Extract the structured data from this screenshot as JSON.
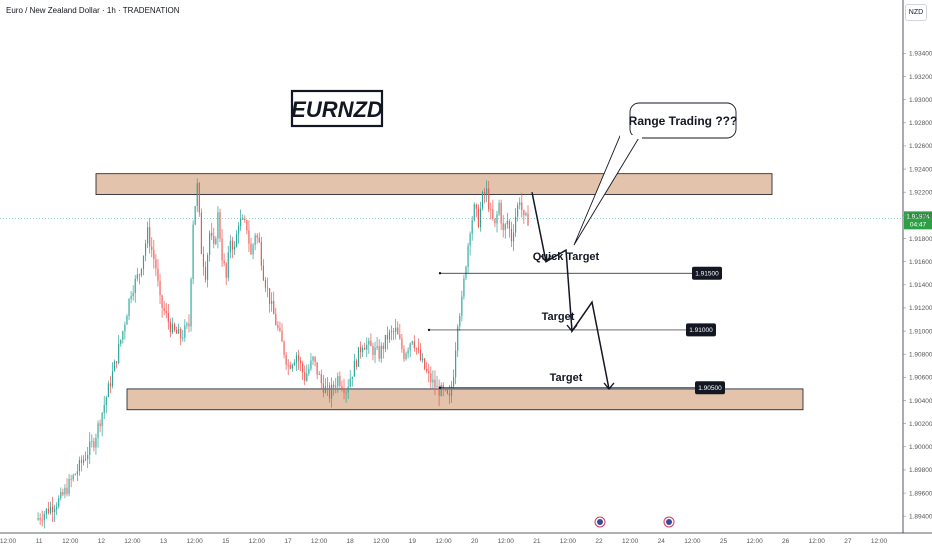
{
  "header": {
    "title": "Euro / New Zealand Dollar · 1h · TRADENATION",
    "currency": "NZD"
  },
  "colors": {
    "up": "#26a69a",
    "down": "#ef5350",
    "zone_fill": "#deb99c",
    "label_bg": "#131722",
    "current_price_bg": "#2e9e47"
  },
  "chart_data": {
    "type": "candlestick",
    "symbol": "EURNZD",
    "ylim": [
      1.8935,
      1.9355
    ],
    "y_ticks": [
      "1.93400",
      "1.93200",
      "1.93000",
      "1.92800",
      "1.92600",
      "1.92400",
      "1.92200",
      "1.92000",
      "1.91800",
      "1.91600",
      "1.91400",
      "1.91200",
      "1.91000",
      "1.90800",
      "1.90600",
      "1.90400",
      "1.90200",
      "1.90000",
      "1.89800",
      "1.89600",
      "1.89400"
    ],
    "x_ticks": [
      "12:00",
      "11",
      "12:00",
      "12",
      "12:00",
      "13",
      "12:00",
      "15",
      "12:00",
      "17",
      "12:00",
      "18",
      "12:00",
      "19",
      "12:00",
      "20",
      "12:00",
      "21",
      "12:00",
      "22",
      "12:00",
      "24",
      "12:00",
      "25",
      "12:00",
      "26",
      "12:00",
      "27",
      "12:00"
    ],
    "close_path": [
      [
        0,
        1.8937
      ],
      [
        6,
        1.8955
      ],
      [
        10,
        1.898
      ],
      [
        14,
        1.9005
      ],
      [
        16,
        1.903
      ],
      [
        19,
        1.907
      ],
      [
        21,
        1.91
      ],
      [
        23,
        1.9135
      ],
      [
        25,
        1.915
      ],
      [
        27,
        1.9185
      ],
      [
        29,
        1.9155
      ],
      [
        30,
        1.9125
      ],
      [
        33,
        1.91
      ],
      [
        35,
        1.9095
      ],
      [
        37,
        1.9105
      ],
      [
        38,
        1.9195
      ],
      [
        39,
        1.9225
      ],
      [
        40,
        1.917
      ],
      [
        41,
        1.915
      ],
      [
        42,
        1.9185
      ],
      [
        43,
        1.917
      ],
      [
        44,
        1.92
      ],
      [
        45,
        1.9165
      ],
      [
        46,
        1.9145
      ],
      [
        47,
        1.918
      ],
      [
        48,
        1.917
      ],
      [
        49,
        1.9195
      ],
      [
        51,
        1.919
      ],
      [
        52,
        1.9165
      ],
      [
        53,
        1.9185
      ],
      [
        54,
        1.9175
      ],
      [
        55,
        1.915
      ],
      [
        57,
        1.912
      ],
      [
        59,
        1.9095
      ],
      [
        61,
        1.907
      ],
      [
        63,
        1.908
      ],
      [
        65,
        1.906
      ],
      [
        67,
        1.9075
      ],
      [
        69,
        1.9055
      ],
      [
        71,
        1.9045
      ],
      [
        73,
        1.906
      ],
      [
        75,
        1.905
      ],
      [
        77,
        1.907
      ],
      [
        79,
        1.909
      ],
      [
        81,
        1.9085
      ],
      [
        83,
        1.908
      ],
      [
        85,
        1.9095
      ],
      [
        87,
        1.91
      ],
      [
        89,
        1.908
      ],
      [
        91,
        1.9095
      ],
      [
        93,
        1.9075
      ],
      [
        95,
        1.906
      ],
      [
        97,
        1.905
      ],
      [
        99,
        1.9045
      ],
      [
        100,
        1.904
      ],
      [
        101,
        1.9065
      ],
      [
        102,
        1.911
      ],
      [
        103,
        1.9125
      ],
      [
        104,
        1.916
      ],
      [
        105,
        1.919
      ],
      [
        106,
        1.9205
      ],
      [
        107,
        1.9195
      ],
      [
        108,
        1.9215
      ],
      [
        109,
        1.922
      ],
      [
        110,
        1.92
      ],
      [
        111,
        1.919
      ],
      [
        112,
        1.921
      ],
      [
        113,
        1.9185
      ],
      [
        114,
        1.9195
      ],
      [
        115,
        1.918
      ],
      [
        116,
        1.92
      ],
      [
        117,
        1.9215
      ],
      [
        118,
        1.9195
      ],
      [
        119,
        1.9197
      ]
    ],
    "current_price": {
      "value": "1.91974",
      "countdown": "04:47",
      "y": 1.91974
    },
    "zones": [
      {
        "name": "resistance",
        "y_top": 1.9236,
        "y_bottom": 1.9218,
        "from": "12",
        "to": "26"
      },
      {
        "name": "support",
        "y_top": 1.905,
        "y_bottom": 1.9032,
        "from": "12",
        "to": "26"
      }
    ],
    "levels": [
      {
        "label": "1.91500",
        "y": 1.915
      },
      {
        "label": "1.91000",
        "y": 1.9101
      },
      {
        "label": "1.90500",
        "y": 1.9051
      }
    ],
    "projection_path": [
      [
        1.922,
        0
      ],
      [
        1.916,
        1
      ],
      [
        1.917,
        2
      ],
      [
        1.91,
        3
      ],
      [
        1.9125,
        4
      ],
      [
        1.905,
        5
      ]
    ],
    "annotations": {
      "big_title": "EURNZD",
      "callout": "Range Trading ???",
      "quick_target": "Quick Target",
      "target_1": "Target",
      "target_2": "Target"
    }
  }
}
